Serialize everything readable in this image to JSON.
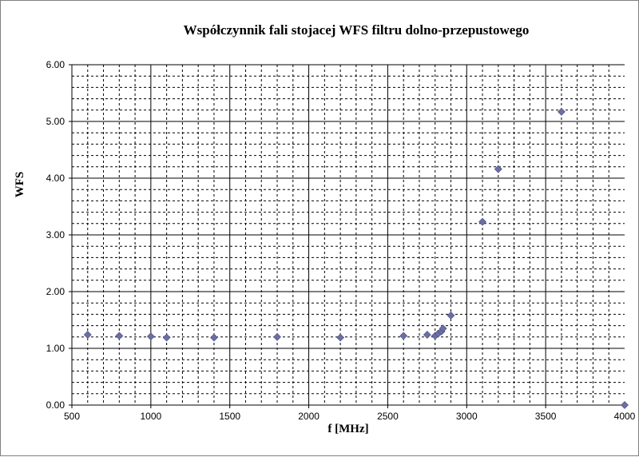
{
  "chart_data": {
    "type": "scatter",
    "title": "Współczynnik fali stojacej WFS filtru dolno-przepustowego",
    "xlabel": "f [MHz]",
    "ylabel": "WFS",
    "xlim": [
      500,
      4000
    ],
    "ylim": [
      0,
      6
    ],
    "x_ticks": [
      "500",
      "1000",
      "1500",
      "2000",
      "2500",
      "3000",
      "3500",
      "4000"
    ],
    "y_ticks": [
      "0.00",
      "1.00",
      "2.00",
      "3.00",
      "4.00",
      "5.00",
      "6.00"
    ],
    "grid": true,
    "marker": "diamond",
    "marker_color": "#6c6fa4",
    "series": [
      {
        "x": [
          600,
          800,
          1000,
          1100,
          1400,
          1800,
          2200,
          2600,
          2750,
          2800,
          2820,
          2840,
          2850,
          2900,
          3100,
          3200,
          3600,
          4000
        ],
        "y": [
          1.24,
          1.22,
          1.21,
          1.19,
          1.19,
          1.2,
          1.19,
          1.22,
          1.24,
          1.22,
          1.26,
          1.3,
          1.35,
          1.58,
          3.23,
          4.16,
          5.17,
          0.0
        ]
      }
    ]
  }
}
